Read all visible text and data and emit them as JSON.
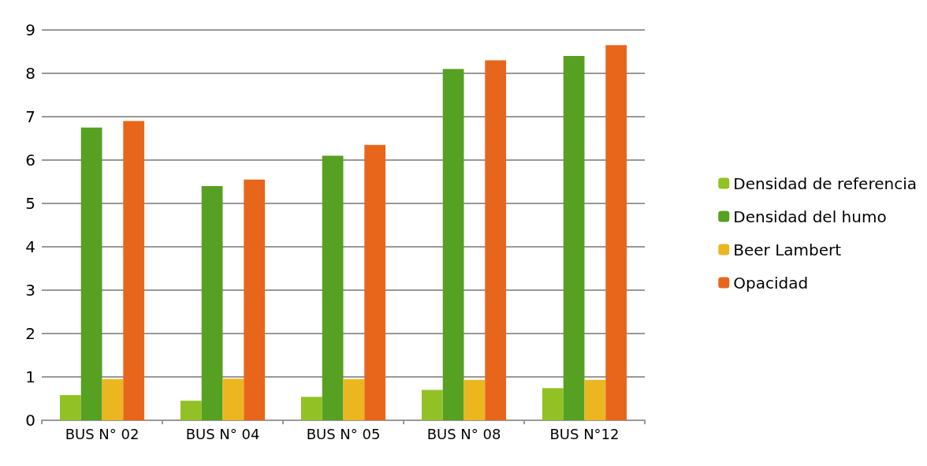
{
  "chart_data": {
    "type": "bar",
    "categories": [
      "BUS N° 02",
      "BUS N° 04",
      "BUS N° 05",
      "BUS N° 08",
      "BUS N°12"
    ],
    "series": [
      {
        "name": "Densidad de referencia",
        "color": "#92c125",
        "values": [
          0.58,
          0.45,
          0.54,
          0.7,
          0.74
        ]
      },
      {
        "name": "Densidad del humo",
        "color": "#56a022",
        "values": [
          6.75,
          5.4,
          6.1,
          8.1,
          8.4
        ]
      },
      {
        "name": "Beer Lambert",
        "color": "#ebb620",
        "values": [
          0.95,
          0.96,
          0.95,
          0.93,
          0.93
        ]
      },
      {
        "name": "Opacidad",
        "color": "#e8661c",
        "values": [
          6.9,
          5.55,
          6.35,
          8.3,
          8.65
        ]
      }
    ],
    "ylim": [
      0,
      9
    ],
    "yticks": [
      0,
      1,
      2,
      3,
      4,
      5,
      6,
      7,
      8,
      9
    ],
    "grid": "y",
    "legend": "right"
  }
}
